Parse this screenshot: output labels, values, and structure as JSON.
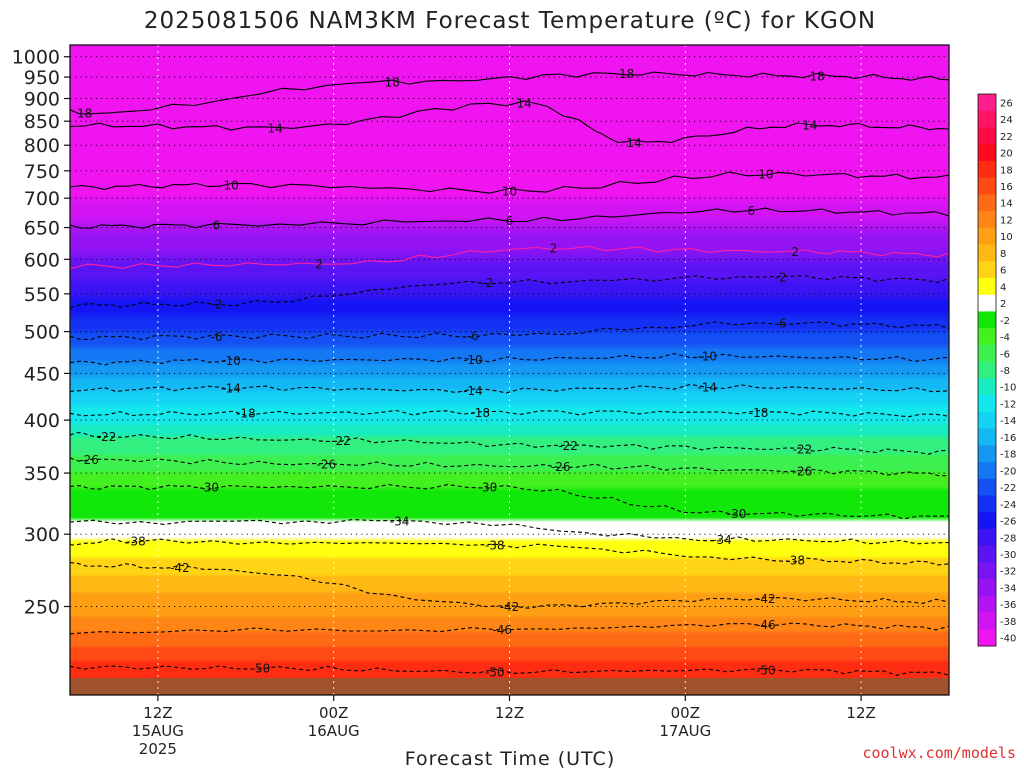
{
  "chart_data": {
    "type": "heatmap",
    "title": "2025081506 NAM3KM Forecast Temperature (ºC) for KGON",
    "xlabel": "Forecast Time (UTC)",
    "ylabel": "",
    "credit": "coolwx.com/models",
    "y_scale": "log-pressure",
    "ylim_hPa": [
      1030,
      200
    ],
    "xlim_hours": [
      0,
      60
    ],
    "y_ticks": [
      "250",
      "300",
      "350",
      "400",
      "450",
      "500",
      "550",
      "600",
      "650",
      "700",
      "750",
      "800",
      "850",
      "900",
      "950",
      "1000"
    ],
    "x_ticks": [
      {
        "hour": 6,
        "l1": "12Z",
        "l2": "15AUG",
        "l3": "2025"
      },
      {
        "hour": 18,
        "l1": "00Z",
        "l2": "16AUG",
        "l3": ""
      },
      {
        "hour": 30,
        "l1": "12Z",
        "l2": "",
        "l3": ""
      },
      {
        "hour": 42,
        "l1": "00Z",
        "l2": "17AUG",
        "l3": ""
      },
      {
        "hour": 54,
        "l1": "12Z",
        "l2": "",
        "l3": ""
      }
    ],
    "colorbar": {
      "levels": [
        "26",
        "24",
        "22",
        "20",
        "18",
        "16",
        "14",
        "12",
        "10",
        "8",
        "6",
        "4",
        "2",
        "-2",
        "-4",
        "-6",
        "-8",
        "-10",
        "-12",
        "-14",
        "-16",
        "-18",
        "-20",
        "-22",
        "-24",
        "-26",
        "-28",
        "-30",
        "-32",
        "-34",
        "-36",
        "-38",
        "-40"
      ],
      "colors": [
        "#ff1f8c",
        "#ff1466",
        "#ff0a44",
        "#ff0a1e",
        "#ff2c14",
        "#ff4a14",
        "#ff6a14",
        "#ff8614",
        "#ffa014",
        "#ffb814",
        "#ffd414",
        "#ffff10",
        "#ffffff",
        "#11e80a",
        "#44f020",
        "#3cf050",
        "#32f080",
        "#18ecc0",
        "#14e8ec",
        "#14d2f4",
        "#14b8f4",
        "#1498f4",
        "#1478f4",
        "#1450f4",
        "#1430f4",
        "#1414f4",
        "#3c14f4",
        "#5a14f4",
        "#7814f4",
        "#9614f4",
        "#b414f4",
        "#d214f4",
        "#f014f0"
      ]
    },
    "levels_hPa": [
      1030,
      1000,
      950,
      900,
      850,
      800,
      750,
      700,
      650,
      600,
      550,
      500,
      450,
      400,
      350,
      300,
      250,
      200
    ],
    "temperature_profile_C": [
      24,
      20,
      18,
      15,
      12,
      10,
      7,
      4,
      1,
      -3,
      -7,
      -12,
      -18,
      -24,
      -30,
      -38,
      -46,
      -52
    ],
    "contours_C": [
      {
        "value": 18,
        "labels": [
          {
            "hour": 1.0,
            "p": 868
          },
          {
            "hour": 22,
            "p": 938
          },
          {
            "hour": 38,
            "p": 958
          },
          {
            "hour": 51,
            "p": 953
          }
        ]
      },
      {
        "value": 14,
        "labels": [
          {
            "hour": 14,
            "p": 836
          },
          {
            "hour": 31,
            "p": 890
          },
          {
            "hour": 38.5,
            "p": 806
          },
          {
            "hour": 50.5,
            "p": 842
          }
        ]
      },
      {
        "value": 10,
        "labels": [
          {
            "hour": 11,
            "p": 724
          },
          {
            "hour": 30,
            "p": 713
          },
          {
            "hour": 47.5,
            "p": 744
          }
        ]
      },
      {
        "value": 6,
        "labels": [
          {
            "hour": 10,
            "p": 654
          },
          {
            "hour": 30,
            "p": 662
          },
          {
            "hour": 46.5,
            "p": 679
          }
        ]
      },
      {
        "value": 2,
        "labels": [
          {
            "hour": 17,
            "p": 593
          },
          {
            "hour": 33,
            "p": 617
          },
          {
            "hour": 49.5,
            "p": 612
          }
        ]
      },
      {
        "value": 2,
        "labels": [
          {
            "hour": 10,
            "p": 536
          },
          {
            "hour": 28.5,
            "p": 566
          },
          {
            "hour": 48.5,
            "p": 574
          }
        ]
      },
      {
        "value": 6,
        "labels": [
          {
            "hour": 10,
            "p": 494
          },
          {
            "hour": 27.5,
            "p": 495
          },
          {
            "hour": 48.5,
            "p": 511
          }
        ]
      },
      {
        "value": 10,
        "labels": [
          {
            "hour": 11,
            "p": 465
          },
          {
            "hour": 27.5,
            "p": 466
          },
          {
            "hour": 43.5,
            "p": 470
          }
        ]
      },
      {
        "value": 14,
        "labels": [
          {
            "hour": 11,
            "p": 434
          },
          {
            "hour": 27.5,
            "p": 431
          },
          {
            "hour": 43.5,
            "p": 435
          }
        ]
      },
      {
        "value": 18,
        "labels": [
          {
            "hour": 12,
            "p": 407
          },
          {
            "hour": 28,
            "p": 408
          },
          {
            "hour": 47,
            "p": 408
          }
        ]
      },
      {
        "value": 22,
        "labels": [
          {
            "hour": 2.5,
            "p": 384
          },
          {
            "hour": 18.5,
            "p": 380
          },
          {
            "hour": 34,
            "p": 375
          },
          {
            "hour": 50,
            "p": 372
          }
        ]
      },
      {
        "value": 26,
        "labels": [
          {
            "hour": 1.3,
            "p": 362
          },
          {
            "hour": 17.5,
            "p": 358
          },
          {
            "hour": 33.5,
            "p": 356
          },
          {
            "hour": 50,
            "p": 352
          }
        ]
      },
      {
        "value": 30,
        "labels": [
          {
            "hour": 9.5,
            "p": 338
          },
          {
            "hour": 28.5,
            "p": 338
          },
          {
            "hour": 45.5,
            "p": 316
          }
        ]
      },
      {
        "value": 34,
        "labels": [
          {
            "hour": 22.5,
            "p": 310
          },
          {
            "hour": 44.5,
            "p": 296
          }
        ]
      },
      {
        "value": 38,
        "labels": [
          {
            "hour": 4.5,
            "p": 295
          },
          {
            "hour": 29,
            "p": 292
          },
          {
            "hour": 49.5,
            "p": 281
          }
        ]
      },
      {
        "value": 42,
        "labels": [
          {
            "hour": 7.5,
            "p": 276
          },
          {
            "hour": 30,
            "p": 250
          },
          {
            "hour": 47.5,
            "p": 255
          }
        ]
      },
      {
        "value": 46,
        "labels": [
          {
            "hour": 29.5,
            "p": 236
          },
          {
            "hour": 47.5,
            "p": 239
          }
        ]
      },
      {
        "value": 50,
        "labels": [
          {
            "hour": 13,
            "p": 214
          },
          {
            "hour": 29,
            "p": 212
          },
          {
            "hour": 47.5,
            "p": 213
          }
        ]
      }
    ]
  }
}
